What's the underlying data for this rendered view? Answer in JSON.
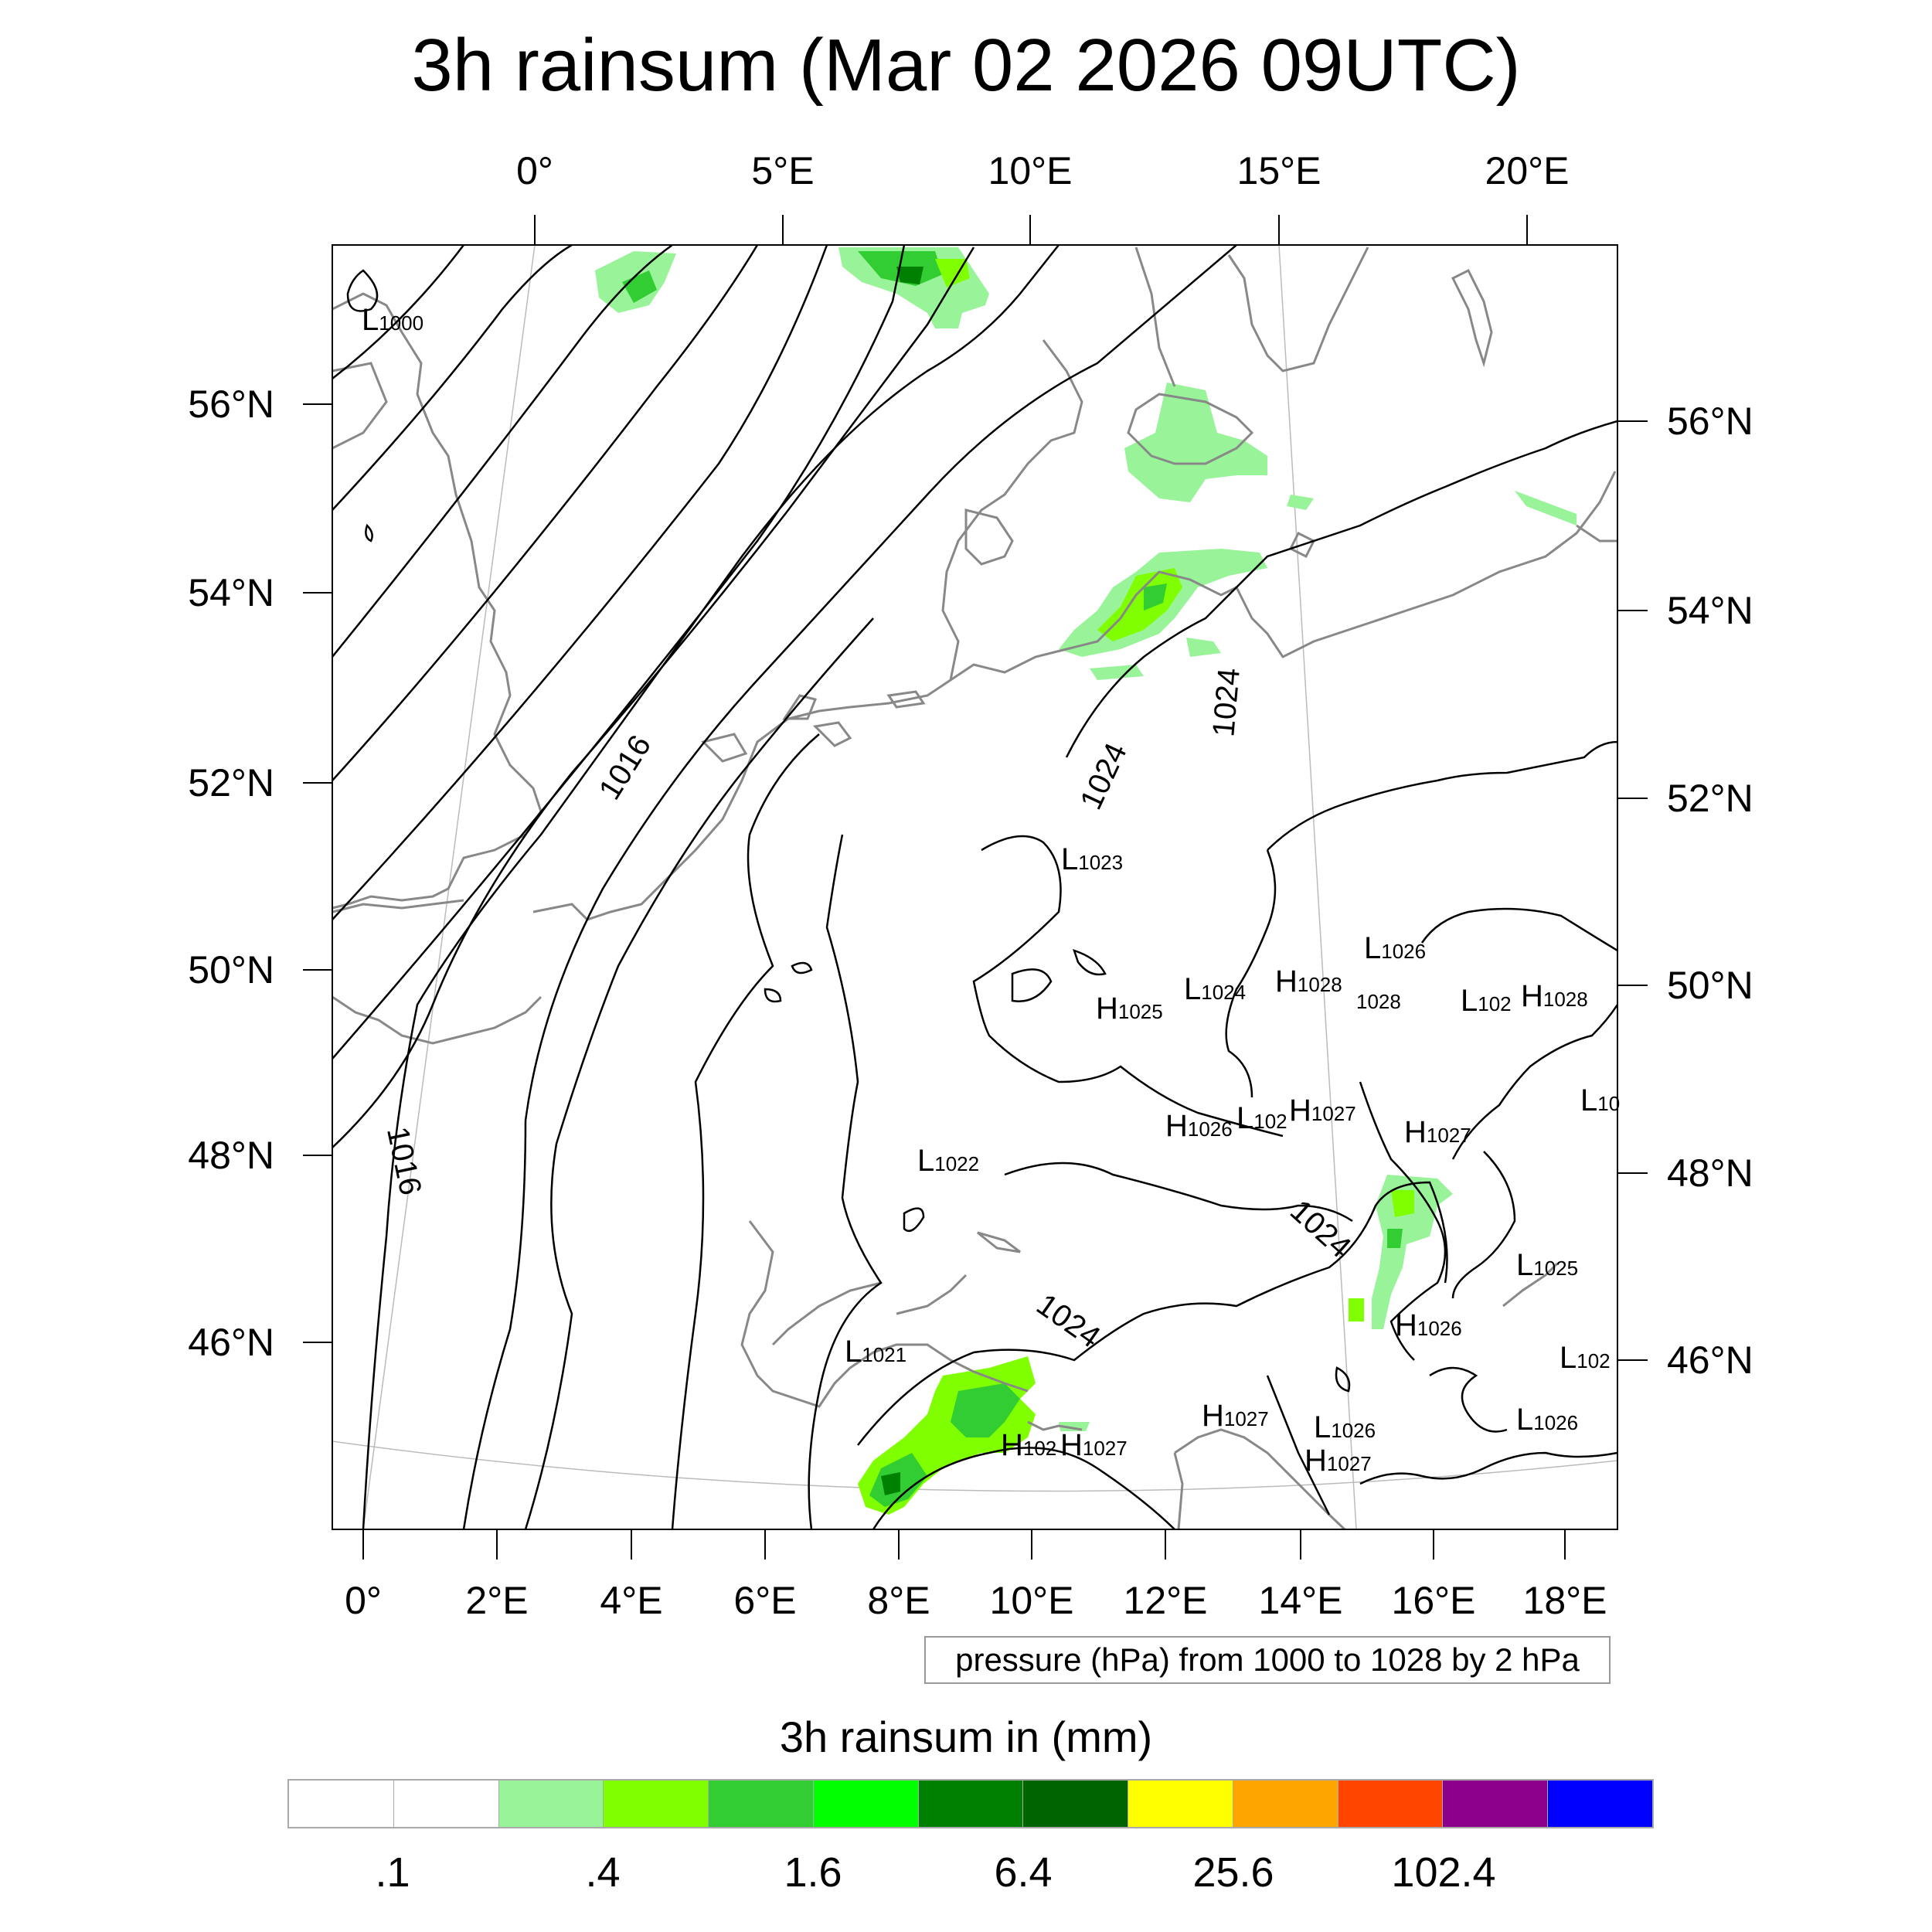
{
  "title": "3h rainsum (Mar 02 2026 09UTC)",
  "ticks": {
    "top": [
      "0°",
      "5°E",
      "10°E",
      "15°E",
      "20°E"
    ],
    "bottom": [
      "0°",
      "2°E",
      "4°E",
      "6°E",
      "8°E",
      "10°E",
      "12°E",
      "14°E",
      "16°E",
      "18°E"
    ],
    "left": [
      "56°N",
      "54°N",
      "52°N",
      "50°N",
      "48°N",
      "46°N"
    ],
    "right": [
      "56°N",
      "54°N",
      "52°N",
      "50°N",
      "48°N",
      "46°N"
    ]
  },
  "contour_info": "pressure (hPa) from 1000 to 1028 by 2 hPa",
  "contour_labels": [
    "1016",
    "1016",
    "1024",
    "1024",
    "1024",
    "1024"
  ],
  "pressure_centers": [
    {
      "kind": "L",
      "value": "1000"
    },
    {
      "kind": "L",
      "value": "1023"
    },
    {
      "kind": "L",
      "value": "1026"
    },
    {
      "kind": "H",
      "value": "1025"
    },
    {
      "kind": "L",
      "value": "1024"
    },
    {
      "kind": "H",
      "value": "1028"
    },
    {
      "kind": "",
      "value": "1028"
    },
    {
      "kind": "L",
      "value": "102"
    },
    {
      "kind": "H",
      "value": "1028"
    },
    {
      "kind": "L",
      "value": "10"
    },
    {
      "kind": "H",
      "value": "1026"
    },
    {
      "kind": "L",
      "value": "102"
    },
    {
      "kind": "H",
      "value": "1027"
    },
    {
      "kind": "H",
      "value": "1027"
    },
    {
      "kind": "L",
      "value": "1022"
    },
    {
      "kind": "L",
      "value": "1025"
    },
    {
      "kind": "H",
      "value": "1026"
    },
    {
      "kind": "L",
      "value": "102"
    },
    {
      "kind": "L",
      "value": "1021"
    },
    {
      "kind": "H",
      "value": "1027"
    },
    {
      "kind": "L",
      "value": "1026"
    },
    {
      "kind": "L",
      "value": "1026"
    },
    {
      "kind": "H",
      "value": "102"
    },
    {
      "kind": "H",
      "value": "1027"
    },
    {
      "kind": "H",
      "value": "1027"
    }
  ],
  "legend": {
    "title": "3h rainsum in (mm)",
    "colors": [
      "#ffffff",
      "#ffffff",
      "#99f399",
      "#7fff00",
      "#32cd32",
      "#00ff00",
      "#008000",
      "#006400",
      "#ffff00",
      "#ffa500",
      "#ff4500",
      "#8b008b",
      "#0000ff"
    ],
    "labels": [
      ".1",
      ".4",
      "1.6",
      "6.4",
      "25.6",
      "102.4"
    ]
  }
}
